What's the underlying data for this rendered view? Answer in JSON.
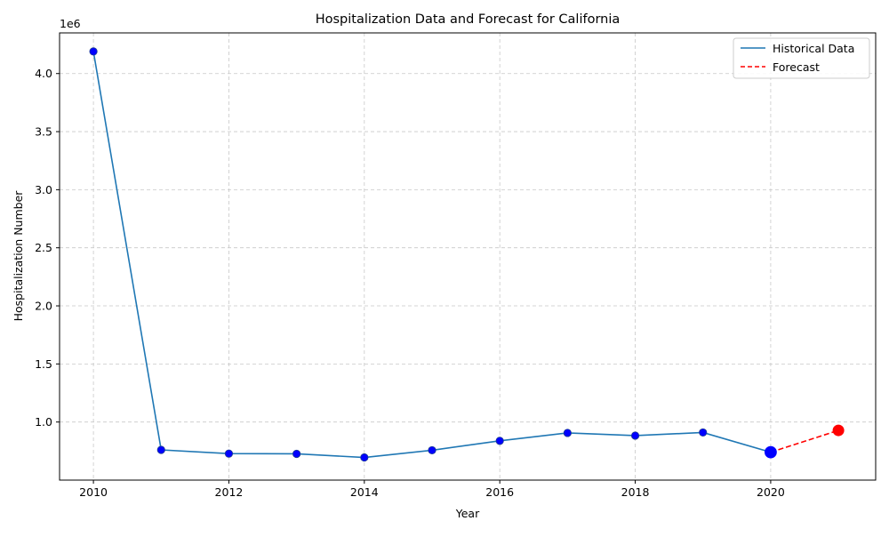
{
  "chart_data": {
    "type": "line",
    "title": "Hospitalization Data and Forecast for California",
    "xlabel": "Year",
    "ylabel": "Hospitalization Number",
    "y_scale_label": "1e6",
    "xlim": [
      2009.5,
      2021.55
    ],
    "ylim": [
      500000,
      4350000
    ],
    "x_ticks": [
      2010,
      2012,
      2014,
      2016,
      2018,
      2020
    ],
    "x_tick_labels": [
      "2010",
      "2012",
      "2014",
      "2016",
      "2018",
      "2020"
    ],
    "y_ticks": [
      1000000,
      1500000,
      2000000,
      2500000,
      3000000,
      3500000,
      4000000
    ],
    "y_tick_labels": [
      "1.0",
      "1.5",
      "2.0",
      "2.5",
      "3.0",
      "3.5",
      "4.0"
    ],
    "grid": true,
    "legend_position": "top-right",
    "colors": {
      "historical_line": "#1f77b4",
      "historical_marker": "#0000ff",
      "forecast": "#ff0000",
      "grid": "#c8c8c8"
    },
    "series": [
      {
        "name": "Historical Data",
        "style": "solid",
        "x": [
          2010,
          2011,
          2012,
          2013,
          2014,
          2015,
          2016,
          2017,
          2018,
          2019,
          2020
        ],
        "y": [
          4190000,
          760000,
          728000,
          726000,
          695000,
          757000,
          838000,
          906000,
          883000,
          910000,
          740000
        ]
      },
      {
        "name": "Forecast",
        "style": "dashed",
        "x": [
          2020,
          2021
        ],
        "y": [
          740000,
          928000
        ]
      }
    ]
  }
}
